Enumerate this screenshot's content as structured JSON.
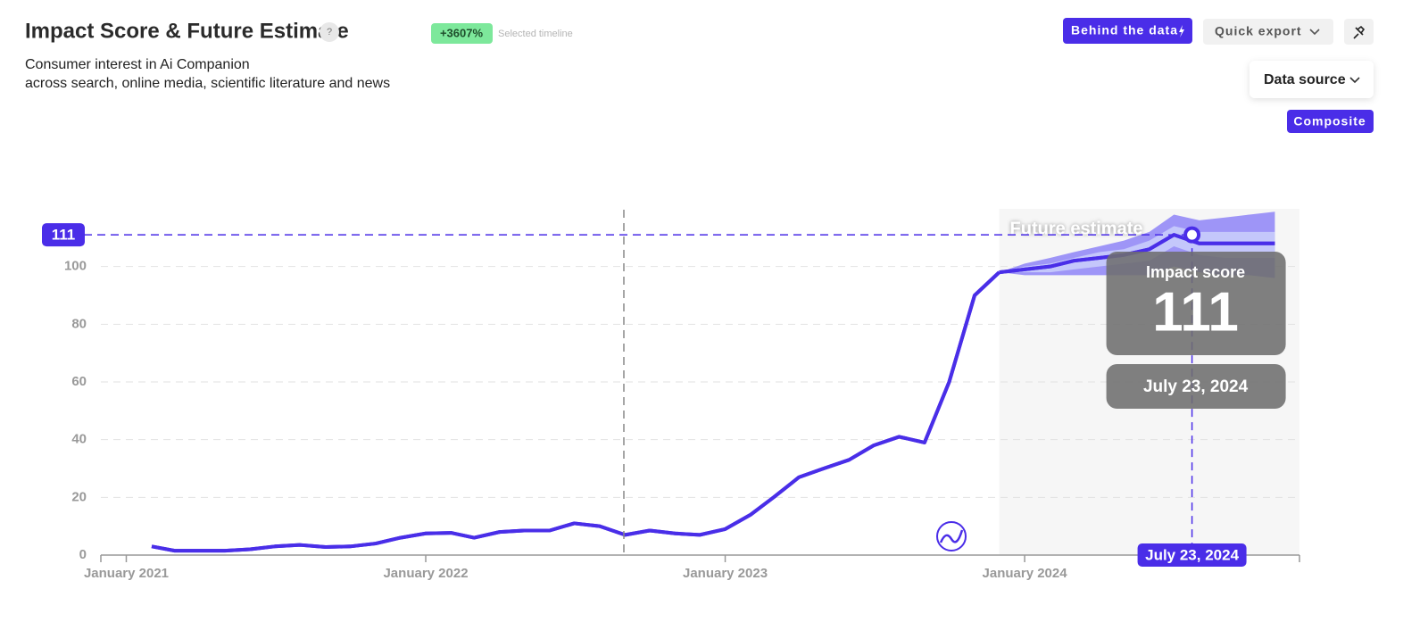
{
  "ui": {
    "help": "?",
    "badge": "+3607%",
    "badge_note": "Selected timeline",
    "subtitle_lines": [
      "Consumer interest in Ai Companion",
      "across search, online media, scientific literature and news"
    ],
    "behind": "Behind the data",
    "export": "Quick export",
    "source": "Data source",
    "composite": "Composite"
  },
  "chart_data": {
    "type": "line",
    "title": "Impact Score & Future Estimate",
    "color": "#4a2de8",
    "band_color": "#9e95f7",
    "inner_band_color": "#c4c7fb",
    "annotation": "Future estimate",
    "x": [
      "2021-02",
      "2021-03",
      "2021-04",
      "2021-05",
      "2021-06",
      "2021-07",
      "2021-08",
      "2021-09",
      "2021-10",
      "2021-11",
      "2021-12",
      "2022-01",
      "2022-02",
      "2022-03",
      "2022-04",
      "2022-05",
      "2022-06",
      "2022-07",
      "2022-08",
      "2022-09",
      "2022-10",
      "2022-11",
      "2022-12",
      "2023-01",
      "2023-02",
      "2023-03",
      "2023-04",
      "2023-05",
      "2023-06",
      "2023-07",
      "2023-08",
      "2023-09",
      "2023-10",
      "2023-11",
      "2023-12",
      "2024-01",
      "2024-02",
      "2024-03",
      "2024-04",
      "2024-05",
      "2024-06",
      "2024-07",
      "2024-08",
      "2024-09",
      "2024-10",
      "2024-11"
    ],
    "values": [
      3,
      1.5,
      1.5,
      1.5,
      2,
      3,
      3.5,
      2.8,
      3,
      4,
      6,
      7.5,
      7.7,
      6,
      8,
      8.5,
      8.5,
      11,
      10,
      7,
      8.5,
      7.5,
      7,
      9,
      14,
      20,
      27,
      30,
      33,
      38,
      41,
      39,
      60,
      90,
      98,
      null,
      null,
      null,
      null,
      null,
      null,
      null,
      null,
      null,
      null,
      null
    ],
    "forecast": [
      null,
      null,
      null,
      null,
      null,
      null,
      null,
      null,
      null,
      null,
      null,
      null,
      null,
      null,
      null,
      null,
      null,
      null,
      null,
      null,
      null,
      null,
      null,
      null,
      null,
      null,
      null,
      null,
      null,
      null,
      null,
      null,
      null,
      null,
      98,
      99,
      100,
      102,
      103,
      104,
      106,
      111,
      108,
      108,
      108,
      108
    ],
    "forecast_upper": [
      null,
      null,
      null,
      null,
      null,
      null,
      null,
      null,
      null,
      null,
      null,
      null,
      null,
      null,
      null,
      null,
      null,
      null,
      null,
      null,
      null,
      null,
      null,
      null,
      null,
      null,
      null,
      null,
      null,
      null,
      null,
      null,
      null,
      null,
      98,
      101,
      103,
      105,
      107,
      109,
      112,
      118,
      116,
      117,
      118,
      119
    ],
    "forecast_lower": [
      null,
      null,
      null,
      null,
      null,
      null,
      null,
      null,
      null,
      null,
      null,
      null,
      null,
      null,
      null,
      null,
      null,
      null,
      null,
      null,
      null,
      null,
      null,
      null,
      null,
      null,
      null,
      null,
      null,
      null,
      null,
      null,
      null,
      null,
      98,
      97,
      97,
      97,
      97,
      97,
      97,
      100,
      98,
      97,
      97,
      96
    ],
    "forecast_inner_upper": [
      null,
      null,
      null,
      null,
      null,
      null,
      null,
      null,
      null,
      null,
      null,
      null,
      null,
      null,
      null,
      null,
      null,
      null,
      null,
      null,
      null,
      null,
      null,
      null,
      null,
      null,
      null,
      null,
      null,
      null,
      null,
      null,
      null,
      null,
      98,
      100,
      101,
      103,
      105,
      106,
      109,
      114,
      112,
      112,
      112,
      112
    ],
    "forecast_inner_lower": [
      null,
      null,
      null,
      null,
      null,
      null,
      null,
      null,
      null,
      null,
      null,
      null,
      null,
      null,
      null,
      null,
      null,
      null,
      null,
      null,
      null,
      null,
      null,
      null,
      null,
      null,
      null,
      null,
      null,
      null,
      null,
      null,
      null,
      null,
      98,
      98,
      98,
      99,
      100,
      101,
      102,
      107,
      104,
      103,
      103,
      103
    ],
    "xlim": [
      "2020-12",
      "2024-12"
    ],
    "xticks": [
      {
        "value": "2021-01",
        "label": "January 2021"
      },
      {
        "value": "2022-01",
        "label": "January 2022"
      },
      {
        "value": "2023-01",
        "label": "January 2023"
      },
      {
        "value": "2024-01",
        "label": "January 2024"
      }
    ],
    "ylim": [
      0,
      120
    ],
    "yticks": [
      0,
      20,
      40,
      60,
      80,
      100
    ],
    "grid": true,
    "tooltip": {
      "label": "Impact score",
      "value": 111,
      "date": "July 23, 2024"
    }
  }
}
